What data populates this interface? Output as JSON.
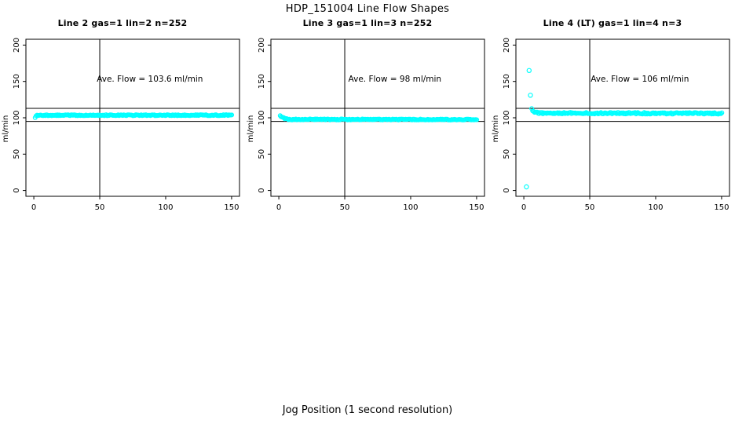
{
  "page": {
    "title": "HDP_151004  Line Flow Shapes",
    "xlabel": "Jog Position (1 second resolution)"
  },
  "colors": {
    "points": "#00FFFF",
    "axis": "#000000",
    "background": "#FFFFFF",
    "text": "#000000"
  },
  "chart_data": [
    {
      "type": "scatter",
      "title": "Line 2 gas=1 lin=2 n=252",
      "ylabel": "ml/min",
      "annotation": "Ave. Flow =  103.6  ml/min",
      "ave_flow_ml_min": 103.6,
      "n_points": 252,
      "xticks": [
        0,
        50,
        100,
        150
      ],
      "yticks": [
        0,
        50,
        100,
        150,
        200
      ],
      "xlim": [
        -6,
        156
      ],
      "ylim": [
        -8,
        208
      ],
      "ref_lines_y": [
        113,
        95
      ],
      "vline_x": 50,
      "annotation_center": [
        88,
        153
      ],
      "band_keypoints": [
        [
          1,
          100.8
        ],
        [
          1.6,
          102.6
        ],
        [
          2.5,
          103.4
        ],
        [
          150.5,
          103.6
        ]
      ],
      "band_jitter": 0.7,
      "outliers": [],
      "grid": false,
      "legend": "none"
    },
    {
      "type": "scatter",
      "title": "Line 3 gas=1 lin=3 n=252",
      "ylabel": "ml/min",
      "annotation": "Ave. Flow =  98  ml/min",
      "ave_flow_ml_min": 98,
      "n_points": 252,
      "xticks": [
        0,
        50,
        100,
        150
      ],
      "yticks": [
        0,
        50,
        100,
        150,
        200
      ],
      "xlim": [
        -6,
        156
      ],
      "ylim": [
        -8,
        208
      ],
      "ref_lines_y": [
        113,
        95
      ],
      "vline_x": 50,
      "annotation_center": [
        88,
        153
      ],
      "band_keypoints": [
        [
          1,
          103.2
        ],
        [
          2,
          101.5
        ],
        [
          4,
          99.2
        ],
        [
          7,
          97.8
        ],
        [
          150.5,
          97.5
        ]
      ],
      "band_jitter": 0.7,
      "outliers": [],
      "grid": false,
      "legend": "none"
    },
    {
      "type": "scatter",
      "title": "Line 4 (LT) gas=1 lin=4 n=3",
      "ylabel": "ml/min",
      "annotation": "Ave. Flow =  106  ml/min",
      "ave_flow_ml_min": 106,
      "n_points": 3,
      "xticks": [
        0,
        50,
        100,
        150
      ],
      "yticks": [
        0,
        50,
        100,
        150,
        200
      ],
      "xlim": [
        -6,
        156
      ],
      "ylim": [
        -8,
        208
      ],
      "ref_lines_y": [
        113,
        95
      ],
      "vline_x": 50,
      "annotation_center": [
        88,
        153
      ],
      "band_keypoints": [
        [
          6,
          112.5
        ],
        [
          7,
          109.5
        ],
        [
          9,
          107.3
        ],
        [
          12,
          106.5
        ],
        [
          150.5,
          106
        ]
      ],
      "band_jitter": 1.1,
      "outliers": [
        [
          4,
          165
        ],
        [
          5,
          131
        ],
        [
          2,
          5
        ]
      ],
      "grid": false,
      "legend": "none"
    }
  ]
}
